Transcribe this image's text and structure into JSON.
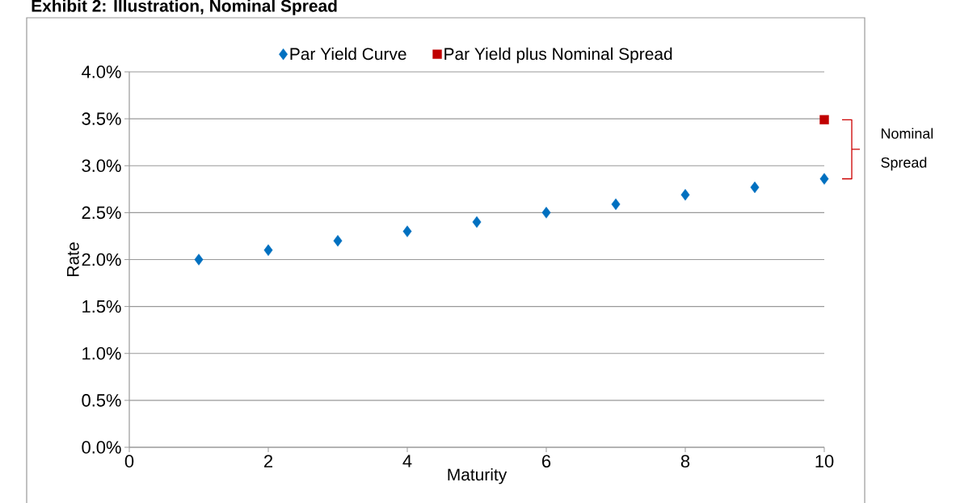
{
  "chart_data": {
    "type": "scatter",
    "title": "Exhibit 2: Illustration, Nominal Spread",
    "xlabel": "Maturity",
    "ylabel": "Rate",
    "xlim": [
      0,
      10
    ],
    "xticks": [
      0,
      2,
      4,
      6,
      8,
      10
    ],
    "ylim": [
      0,
      4
    ],
    "yticks": [
      {
        "value": 0,
        "label": "0.0%"
      },
      {
        "value": 0.5,
        "label": "0.5%"
      },
      {
        "value": 1,
        "label": "1.0%"
      },
      {
        "value": 1.5,
        "label": "1.5%"
      },
      {
        "value": 2,
        "label": "2.0%"
      },
      {
        "value": 2.5,
        "label": "2.5%"
      },
      {
        "value": 3,
        "label": "3.0%"
      },
      {
        "value": 3.5,
        "label": "3.5%"
      },
      {
        "value": 4,
        "label": "4.0%"
      }
    ],
    "grid": "y",
    "legend": "top",
    "annotations": [
      "Nominal Spread"
    ],
    "series": [
      {
        "name": "Par Yield Curve",
        "color": "#0070c0",
        "marker": "diamond",
        "x": [
          1,
          2,
          3,
          4,
          5,
          6,
          7,
          8,
          9,
          10
        ],
        "values": [
          2.0,
          2.1,
          2.2,
          2.3,
          2.4,
          2.5,
          2.59,
          2.69,
          2.77,
          2.86
        ]
      },
      {
        "name": "Par Yield plus Nominal Spread",
        "color": "#c00000",
        "marker": "square",
        "x": [
          10
        ],
        "values": [
          3.49
        ]
      }
    ]
  }
}
